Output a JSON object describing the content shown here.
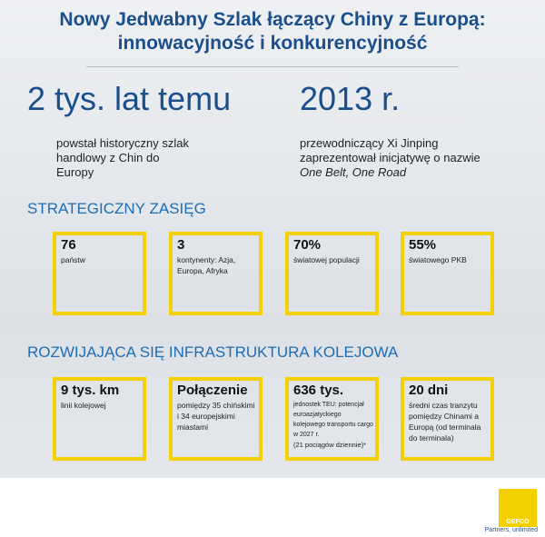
{
  "header": {
    "title_line1": "Nowy Jedwabny Szlak łączący Chiny z Europą:",
    "title_line2": "innowacyjność i konkurencyjność"
  },
  "facts": [
    {
      "headline": "2 tys. lat temu",
      "text": "powstał historyczny szlak handlowy z Chin do Europy"
    },
    {
      "headline": "2013 r.",
      "text": "przewodniczący Xi Jinping zaprezentował inicjatywę o nazwie ",
      "text_italic": "One Belt, One Road"
    }
  ],
  "sections": [
    {
      "heading": "STRATEGICZNY ZASIĘG",
      "boxes": [
        {
          "value": "76",
          "text": "państw"
        },
        {
          "value": "3",
          "text": "kontynenty: Azja, Europa, Afryka"
        },
        {
          "value": "70%",
          "text": "światowej populacji"
        },
        {
          "value": "55%",
          "text": "światowego PKB"
        }
      ]
    },
    {
      "heading": "ROZWIJAJĄCA SIĘ INFRASTRUKTURA KOLEJOWA",
      "boxes": [
        {
          "value": "9 tys. km",
          "text": "linii kolejowej"
        },
        {
          "value": "Połączenie",
          "text": "pomiędzy 35 chińskimi i 34 europejskimi miastami"
        },
        {
          "value": "636 tys.",
          "text": "jednostek TEU: potencjał euroazjatyckiego kolejowego transportu cargo w 2027 r.",
          "note": "(21 pociągów dziennie)*"
        },
        {
          "value": "20 dni",
          "text": "średni czas tranzytu pomiędzy Chinami a Europą (od terminala do terminala)"
        }
      ]
    }
  ],
  "footer": {
    "logo": "GEFCO",
    "tagline": "Partners, unlimited"
  }
}
